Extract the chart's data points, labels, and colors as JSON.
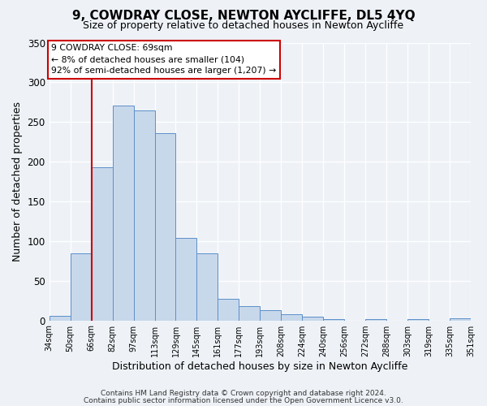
{
  "title": "9, COWDRAY CLOSE, NEWTON AYCLIFFE, DL5 4YQ",
  "subtitle": "Size of property relative to detached houses in Newton Aycliffe",
  "xlabel": "Distribution of detached houses by size in Newton Aycliffe",
  "ylabel": "Number of detached properties",
  "bar_values": [
    6,
    84,
    193,
    271,
    265,
    236,
    104,
    85,
    27,
    18,
    13,
    8,
    5,
    2,
    0,
    2,
    0,
    2,
    0,
    3
  ],
  "bin_labels": [
    "34sqm",
    "50sqm",
    "66sqm",
    "82sqm",
    "97sqm",
    "113sqm",
    "129sqm",
    "145sqm",
    "161sqm",
    "177sqm",
    "193sqm",
    "208sqm",
    "224sqm",
    "240sqm",
    "256sqm",
    "272sqm",
    "288sqm",
    "303sqm",
    "319sqm",
    "335sqm",
    "351sqm"
  ],
  "bar_color": "#c8d8eb",
  "bar_edge_color": "#5b8fc9",
  "vline_color": "#cc0000",
  "vline_x_index": 2,
  "ylim": [
    0,
    350
  ],
  "yticks": [
    0,
    50,
    100,
    150,
    200,
    250,
    300,
    350
  ],
  "annotation_title": "9 COWDRAY CLOSE: 69sqm",
  "annotation_line2": "← 8% of detached houses are smaller (104)",
  "annotation_line3": "92% of semi-detached houses are larger (1,207) →",
  "annotation_box_edgecolor": "#cc0000",
  "annotation_box_facecolor": "#ffffff",
  "footer1": "Contains HM Land Registry data © Crown copyright and database right 2024.",
  "footer2": "Contains public sector information licensed under the Open Government Licence v3.0.",
  "background_color": "#eef2f7",
  "grid_color": "#ffffff",
  "title_fontsize": 11,
  "subtitle_fontsize": 9,
  "ylabel_fontsize": 9,
  "xlabel_fontsize": 9
}
